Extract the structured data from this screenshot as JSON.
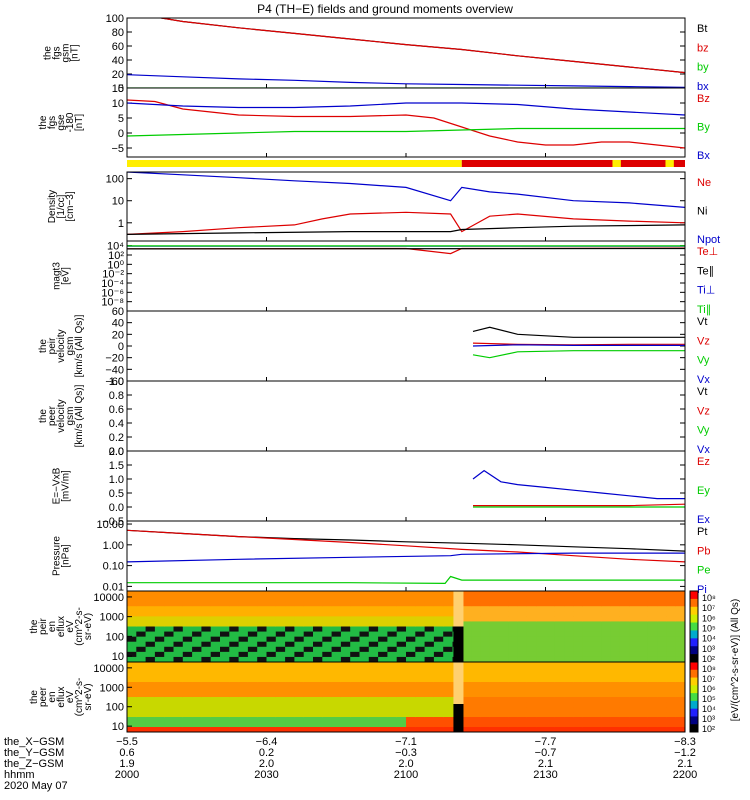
{
  "title": "P4 (TH−E) fields and ground moments overview",
  "colors": {
    "black": "#000000",
    "red": "#dd0000",
    "green": "#00cc00",
    "blue": "#0000cc",
    "yellow": "#ffee00"
  },
  "chart_data": [
    {
      "type": "line",
      "id": "p1",
      "ylabel": [
        "the",
        "fgs",
        "gsm",
        "[nT]"
      ],
      "ylim": [
        0,
        100
      ],
      "yticks": [
        "100",
        "80",
        "60",
        "40",
        "20",
        "0"
      ],
      "ytickvals": [
        100,
        80,
        60,
        40,
        20,
        0
      ],
      "series": [
        {
          "name": "Bt",
          "color": "#000000",
          "x": [
            0,
            0.1,
            0.2,
            0.3,
            0.4,
            0.5,
            0.6,
            0.7,
            0.8,
            0.9,
            1.0
          ],
          "y": [
            108,
            95,
            86,
            78,
            70,
            62,
            55,
            46,
            38,
            30,
            22
          ]
        },
        {
          "name": "bz",
          "color": "#dd0000",
          "x": [
            0,
            0.1,
            0.2,
            0.3,
            0.4,
            0.5,
            0.6,
            0.7,
            0.8,
            0.9,
            1.0
          ],
          "y": [
            108,
            95,
            86,
            78,
            70,
            62,
            55,
            46,
            38,
            30,
            22
          ]
        },
        {
          "name": "by",
          "color": "#00cc00",
          "x": [
            0,
            0.2,
            0.4,
            0.6,
            0.8,
            1.0
          ],
          "y": [
            0,
            0,
            0,
            0,
            0,
            0
          ]
        },
        {
          "name": "bx",
          "color": "#0000cc",
          "x": [
            0,
            0.1,
            0.2,
            0.3,
            0.4,
            0.5,
            0.6,
            0.7,
            0.8,
            0.9,
            1.0
          ],
          "y": [
            19,
            16,
            13,
            11,
            8,
            6,
            5,
            4,
            3,
            2,
            1
          ]
        }
      ]
    },
    {
      "type": "line",
      "id": "p2",
      "ylabel": [
        "the",
        "fgs",
        "gse",
        "-180",
        "[nT]"
      ],
      "ylim": [
        -8,
        15
      ],
      "yticks": [
        "15",
        "10",
        "5",
        "0",
        "−5"
      ],
      "ytickvals": [
        15,
        10,
        5,
        0,
        -5
      ],
      "series": [
        {
          "name": "Bz",
          "color": "#dd0000",
          "x": [
            0,
            0.05,
            0.1,
            0.2,
            0.3,
            0.4,
            0.5,
            0.55,
            0.6,
            0.65,
            0.7,
            0.75,
            0.8,
            0.85,
            0.9,
            0.95,
            1.0
          ],
          "y": [
            11,
            10.5,
            8,
            6,
            5.5,
            5.5,
            6,
            5,
            2,
            -1,
            -3,
            -4,
            -4,
            -3,
            -3,
            -4,
            -5
          ]
        },
        {
          "name": "By",
          "color": "#00cc00",
          "x": [
            0,
            0.1,
            0.2,
            0.3,
            0.4,
            0.5,
            0.6,
            0.7,
            0.8,
            0.9,
            1.0
          ],
          "y": [
            -1,
            -0.5,
            0,
            0.5,
            0.5,
            0.5,
            1,
            1.5,
            1.5,
            1.5,
            1.5
          ]
        },
        {
          "name": "Bx",
          "color": "#0000cc",
          "x": [
            0,
            0.1,
            0.2,
            0.3,
            0.4,
            0.5,
            0.6,
            0.7,
            0.8,
            0.9,
            1.0
          ],
          "y": [
            10,
            9,
            8.5,
            8.5,
            9,
            10,
            10,
            9.5,
            8,
            7,
            6
          ]
        }
      ]
    },
    {
      "type": "line",
      "id": "p3",
      "log": true,
      "ylabel": [
        "Density",
        "[1/cc]",
        "[cm−3]"
      ],
      "ylim": [
        0.15,
        200
      ],
      "yticks": [
        "100",
        "10",
        "1"
      ],
      "ytickvals": [
        100,
        10,
        1
      ],
      "series": [
        {
          "name": "Ne",
          "color": "#dd0000",
          "x": [
            0,
            0.1,
            0.2,
            0.3,
            0.35,
            0.4,
            0.5,
            0.58,
            0.6,
            0.65,
            0.7,
            0.8,
            0.9,
            1.0
          ],
          "y": [
            0.3,
            0.4,
            0.6,
            0.8,
            1.5,
            2.5,
            3,
            2.5,
            0.4,
            2,
            2.5,
            1.5,
            1.2,
            1
          ]
        },
        {
          "name": "Ni",
          "color": "#000000",
          "x": [
            0,
            0.2,
            0.4,
            0.58,
            0.6,
            0.7,
            0.8,
            1.0
          ],
          "y": [
            0.3,
            0.35,
            0.4,
            0.4,
            0.5,
            0.6,
            0.7,
            0.8
          ]
        },
        {
          "name": "Npot",
          "color": "#0000cc",
          "x": [
            0,
            0.1,
            0.2,
            0.3,
            0.4,
            0.5,
            0.58,
            0.6,
            0.65,
            0.7,
            0.8,
            0.9,
            1.0
          ],
          "y": [
            200,
            150,
            110,
            80,
            60,
            40,
            10,
            40,
            25,
            20,
            10,
            8,
            5
          ]
        }
      ]
    },
    {
      "type": "line",
      "id": "p4",
      "log": true,
      "ylabel": [
        "magt3",
        "[eV]"
      ],
      "ylim": [
        1e-10,
        100000.0
      ],
      "yticks": [
        "10⁴",
        "10²",
        "10⁰",
        "10⁻²",
        "10⁻⁴",
        "10⁻⁶",
        "10⁻⁸"
      ],
      "ytickvals": [
        10000.0,
        100.0,
        1,
        0.01,
        0.0001,
        1e-06,
        1e-08
      ],
      "series": [
        {
          "name": "Te⊥",
          "color": "#dd0000",
          "x": [
            0,
            0.5,
            0.58,
            0.6,
            1.0
          ],
          "y": [
            2000,
            2500,
            200,
            2500,
            3000
          ]
        },
        {
          "name": "Te∥",
          "color": "#000000",
          "x": [
            0,
            1.0
          ],
          "y": [
            2000,
            2500
          ]
        },
        {
          "name": "Ti⊥",
          "color": "#0000cc",
          "x": [
            0,
            1.0
          ],
          "y": [
            8000,
            8000
          ]
        },
        {
          "name": "Ti∥",
          "color": "#00cc00",
          "x": [
            0,
            1.0
          ],
          "y": [
            9000,
            9000
          ]
        }
      ]
    },
    {
      "type": "line",
      "id": "p5",
      "ylabel": [
        "the",
        "peir",
        "velocity",
        "gsm",
        "[km/s (All Qs)]"
      ],
      "ylim": [
        -60,
        60
      ],
      "yticks": [
        "60",
        "40",
        "20",
        "0",
        "−20",
        "−40",
        "−60"
      ],
      "ytickvals": [
        60,
        40,
        20,
        0,
        -20,
        -40,
        -60
      ],
      "series": [
        {
          "name": "Vt",
          "color": "#000000",
          "x": [
            0.62,
            0.65,
            0.7,
            0.8,
            0.9,
            1.0
          ],
          "y": [
            25,
            32,
            20,
            15,
            15,
            15
          ]
        },
        {
          "name": "Vz",
          "color": "#dd0000",
          "x": [
            0.62,
            0.7,
            0.8,
            0.9,
            1.0
          ],
          "y": [
            5,
            3,
            2,
            3,
            3
          ]
        },
        {
          "name": "Vy",
          "color": "#00cc00",
          "x": [
            0.62,
            0.65,
            0.7,
            0.8,
            0.9,
            1.0
          ],
          "y": [
            -15,
            -20,
            -10,
            -8,
            -8,
            -8
          ]
        },
        {
          "name": "Vx",
          "color": "#0000cc",
          "x": [
            0.62,
            0.7,
            0.8,
            0.9,
            1.0
          ],
          "y": [
            0,
            2,
            1,
            1,
            1
          ]
        }
      ]
    },
    {
      "type": "line",
      "id": "p6",
      "ylabel": [
        "the",
        "peer",
        "velocity",
        "gsm",
        "[km/s (All Qs)]"
      ],
      "ylim": [
        0,
        1
      ],
      "yticks": [
        "1.0",
        "0.8",
        "0.6",
        "0.4",
        "0.2",
        "0.0"
      ],
      "ytickvals": [
        1,
        0.8,
        0.6,
        0.4,
        0.2,
        0
      ],
      "series": [
        {
          "name": "Vt",
          "color": "#000000",
          "x": [],
          "y": []
        },
        {
          "name": "Vz",
          "color": "#dd0000",
          "x": [],
          "y": []
        },
        {
          "name": "Vy",
          "color": "#00cc00",
          "x": [],
          "y": []
        },
        {
          "name": "Vx",
          "color": "#0000cc",
          "x": [],
          "y": []
        }
      ]
    },
    {
      "type": "line",
      "id": "p7",
      "ylabel": [
        "E=−VxB",
        "[mV/m]"
      ],
      "ylim": [
        -0.5,
        2
      ],
      "yticks": [
        "2.0",
        "1.5",
        "1.0",
        "0.5",
        "0.0",
        "−0.5"
      ],
      "ytickvals": [
        2,
        1.5,
        1,
        0.5,
        0,
        -0.5
      ],
      "series": [
        {
          "name": "Ez",
          "color": "#dd0000",
          "x": [
            0.62,
            0.7,
            0.8,
            0.9,
            1.0
          ],
          "y": [
            0.05,
            0.05,
            0.05,
            0.05,
            0.1
          ]
        },
        {
          "name": "Ey",
          "color": "#00cc00",
          "x": [
            0.62,
            0.7,
            0.8,
            0.9,
            1.0
          ],
          "y": [
            0,
            0,
            0,
            0,
            0
          ]
        },
        {
          "name": "Ex",
          "color": "#0000cc",
          "x": [
            0.62,
            0.64,
            0.67,
            0.7,
            0.75,
            0.8,
            0.85,
            0.9,
            0.95,
            1.0
          ],
          "y": [
            1.0,
            1.3,
            0.9,
            0.8,
            0.7,
            0.6,
            0.5,
            0.4,
            0.3,
            0.3
          ]
        }
      ]
    },
    {
      "type": "line",
      "id": "p8",
      "log": true,
      "ylabel": [
        "Pressure",
        "[nPa]"
      ],
      "ylim": [
        0.006,
        14
      ],
      "yticks": [
        "10.00",
        "1.00",
        "0.10",
        "0.01"
      ],
      "ytickvals": [
        10,
        1,
        0.1,
        0.01
      ],
      "series": [
        {
          "name": "Pt",
          "color": "#000000",
          "x": [
            0,
            0.1,
            0.2,
            0.3,
            0.4,
            0.5,
            0.6,
            0.7,
            0.8,
            0.9,
            1.0
          ],
          "y": [
            5,
            3.5,
            2.5,
            2,
            1.7,
            1.4,
            1.2,
            1,
            0.8,
            0.65,
            0.5
          ]
        },
        {
          "name": "Pb",
          "color": "#dd0000",
          "x": [
            0,
            0.1,
            0.2,
            0.3,
            0.4,
            0.5,
            0.6,
            0.7,
            0.8,
            0.9,
            1.0
          ],
          "y": [
            5,
            3.5,
            2.5,
            1.8,
            1.3,
            0.9,
            0.6,
            0.45,
            0.3,
            0.2,
            0.15
          ]
        },
        {
          "name": "Pe",
          "color": "#00cc00",
          "x": [
            0,
            0.2,
            0.4,
            0.57,
            0.58,
            0.6,
            0.8,
            1.0
          ],
          "y": [
            0.015,
            0.015,
            0.015,
            0.014,
            0.03,
            0.02,
            0.02,
            0.02
          ]
        },
        {
          "name": "Pi",
          "color": "#0000cc",
          "x": [
            0,
            0.2,
            0.4,
            0.58,
            0.6,
            0.8,
            1.0
          ],
          "y": [
            0.15,
            0.2,
            0.25,
            0.3,
            0.35,
            0.4,
            0.4
          ]
        }
      ]
    },
    {
      "type": "heatmap",
      "id": "s1",
      "ylabel": [
        "the",
        "peir",
        "en",
        "eflux",
        "eV",
        "(cm^2-s-",
        "sr-eV)"
      ],
      "yticks": [
        "10000",
        "1000",
        "100",
        "10"
      ]
    },
    {
      "type": "heatmap",
      "id": "s2",
      "ylabel": [
        "the",
        "peer",
        "en",
        "eflux",
        "eV",
        "(cm^2-s-",
        "sr-eV)"
      ],
      "yticks": [
        "10000",
        "1000",
        "100",
        "10"
      ]
    }
  ],
  "colorbar": {
    "ticks": [
      "10⁸",
      "10⁷",
      "10⁶",
      "10⁵",
      "10⁴",
      "10³",
      "10²"
    ],
    "label": "[eV/(cm^2-s-sr-eV)]    (All Qs)"
  },
  "xaxis": {
    "row_labels": [
      "the_X−GSM",
      "the_Y−GSM",
      "the_Z−GSM",
      "hhmm",
      "2020 May 07"
    ],
    "columns": [
      [
        "−5.5",
        "0.6",
        "1.9",
        "2000"
      ],
      [
        "−6.4",
        "0.2",
        "2.0",
        "2030"
      ],
      [
        "−7.1",
        "−0.3",
        "2.0",
        "2100"
      ],
      [
        "−7.7",
        "−0.7",
        "2.1",
        "2130"
      ],
      [
        "−8.3",
        "−1.2",
        "2.1",
        "2200"
      ]
    ]
  }
}
